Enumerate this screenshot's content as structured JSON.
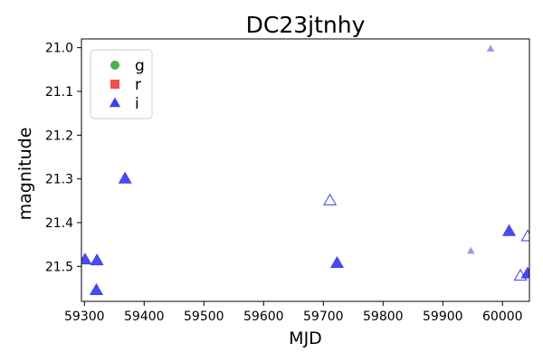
{
  "chart_data": {
    "type": "scatter",
    "title": "DC23jtnhy",
    "xlabel": "MJD",
    "ylabel": "magnitude",
    "xlim": [
      59295,
      60045
    ],
    "ylim": [
      21.58,
      20.98
    ],
    "y_inverted": true,
    "grid": false,
    "legend_position": "top-left",
    "x_ticks": [
      59300,
      59400,
      59500,
      59600,
      59700,
      59800,
      59900,
      60000
    ],
    "y_ticks": [
      21.0,
      21.1,
      21.2,
      21.3,
      21.4,
      21.5
    ],
    "series": [
      {
        "name": "g",
        "marker": "circle",
        "color": "#4caf50",
        "points": []
      },
      {
        "name": "r",
        "marker": "square",
        "color": "#f44b4b",
        "points": []
      },
      {
        "name": "i",
        "marker": "triangle",
        "color": "#4040ee",
        "points": [
          {
            "x": 59301,
            "y": 21.485,
            "style": "filled"
          },
          {
            "x": 59321,
            "y": 21.487,
            "style": "filled"
          },
          {
            "x": 59320,
            "y": 21.555,
            "style": "filled"
          },
          {
            "x": 59368,
            "y": 21.3,
            "style": "filled"
          },
          {
            "x": 59711,
            "y": 21.35,
            "style": "open"
          },
          {
            "x": 59723,
            "y": 21.493,
            "style": "filled"
          },
          {
            "x": 59947,
            "y": 21.465,
            "style": "faded"
          },
          {
            "x": 59980,
            "y": 21.003,
            "style": "faded"
          },
          {
            "x": 60011,
            "y": 21.42,
            "style": "filled"
          },
          {
            "x": 60030,
            "y": 21.522,
            "style": "open"
          },
          {
            "x": 60042,
            "y": 21.432,
            "style": "open"
          },
          {
            "x": 60042,
            "y": 21.517,
            "style": "filled"
          }
        ]
      }
    ]
  }
}
